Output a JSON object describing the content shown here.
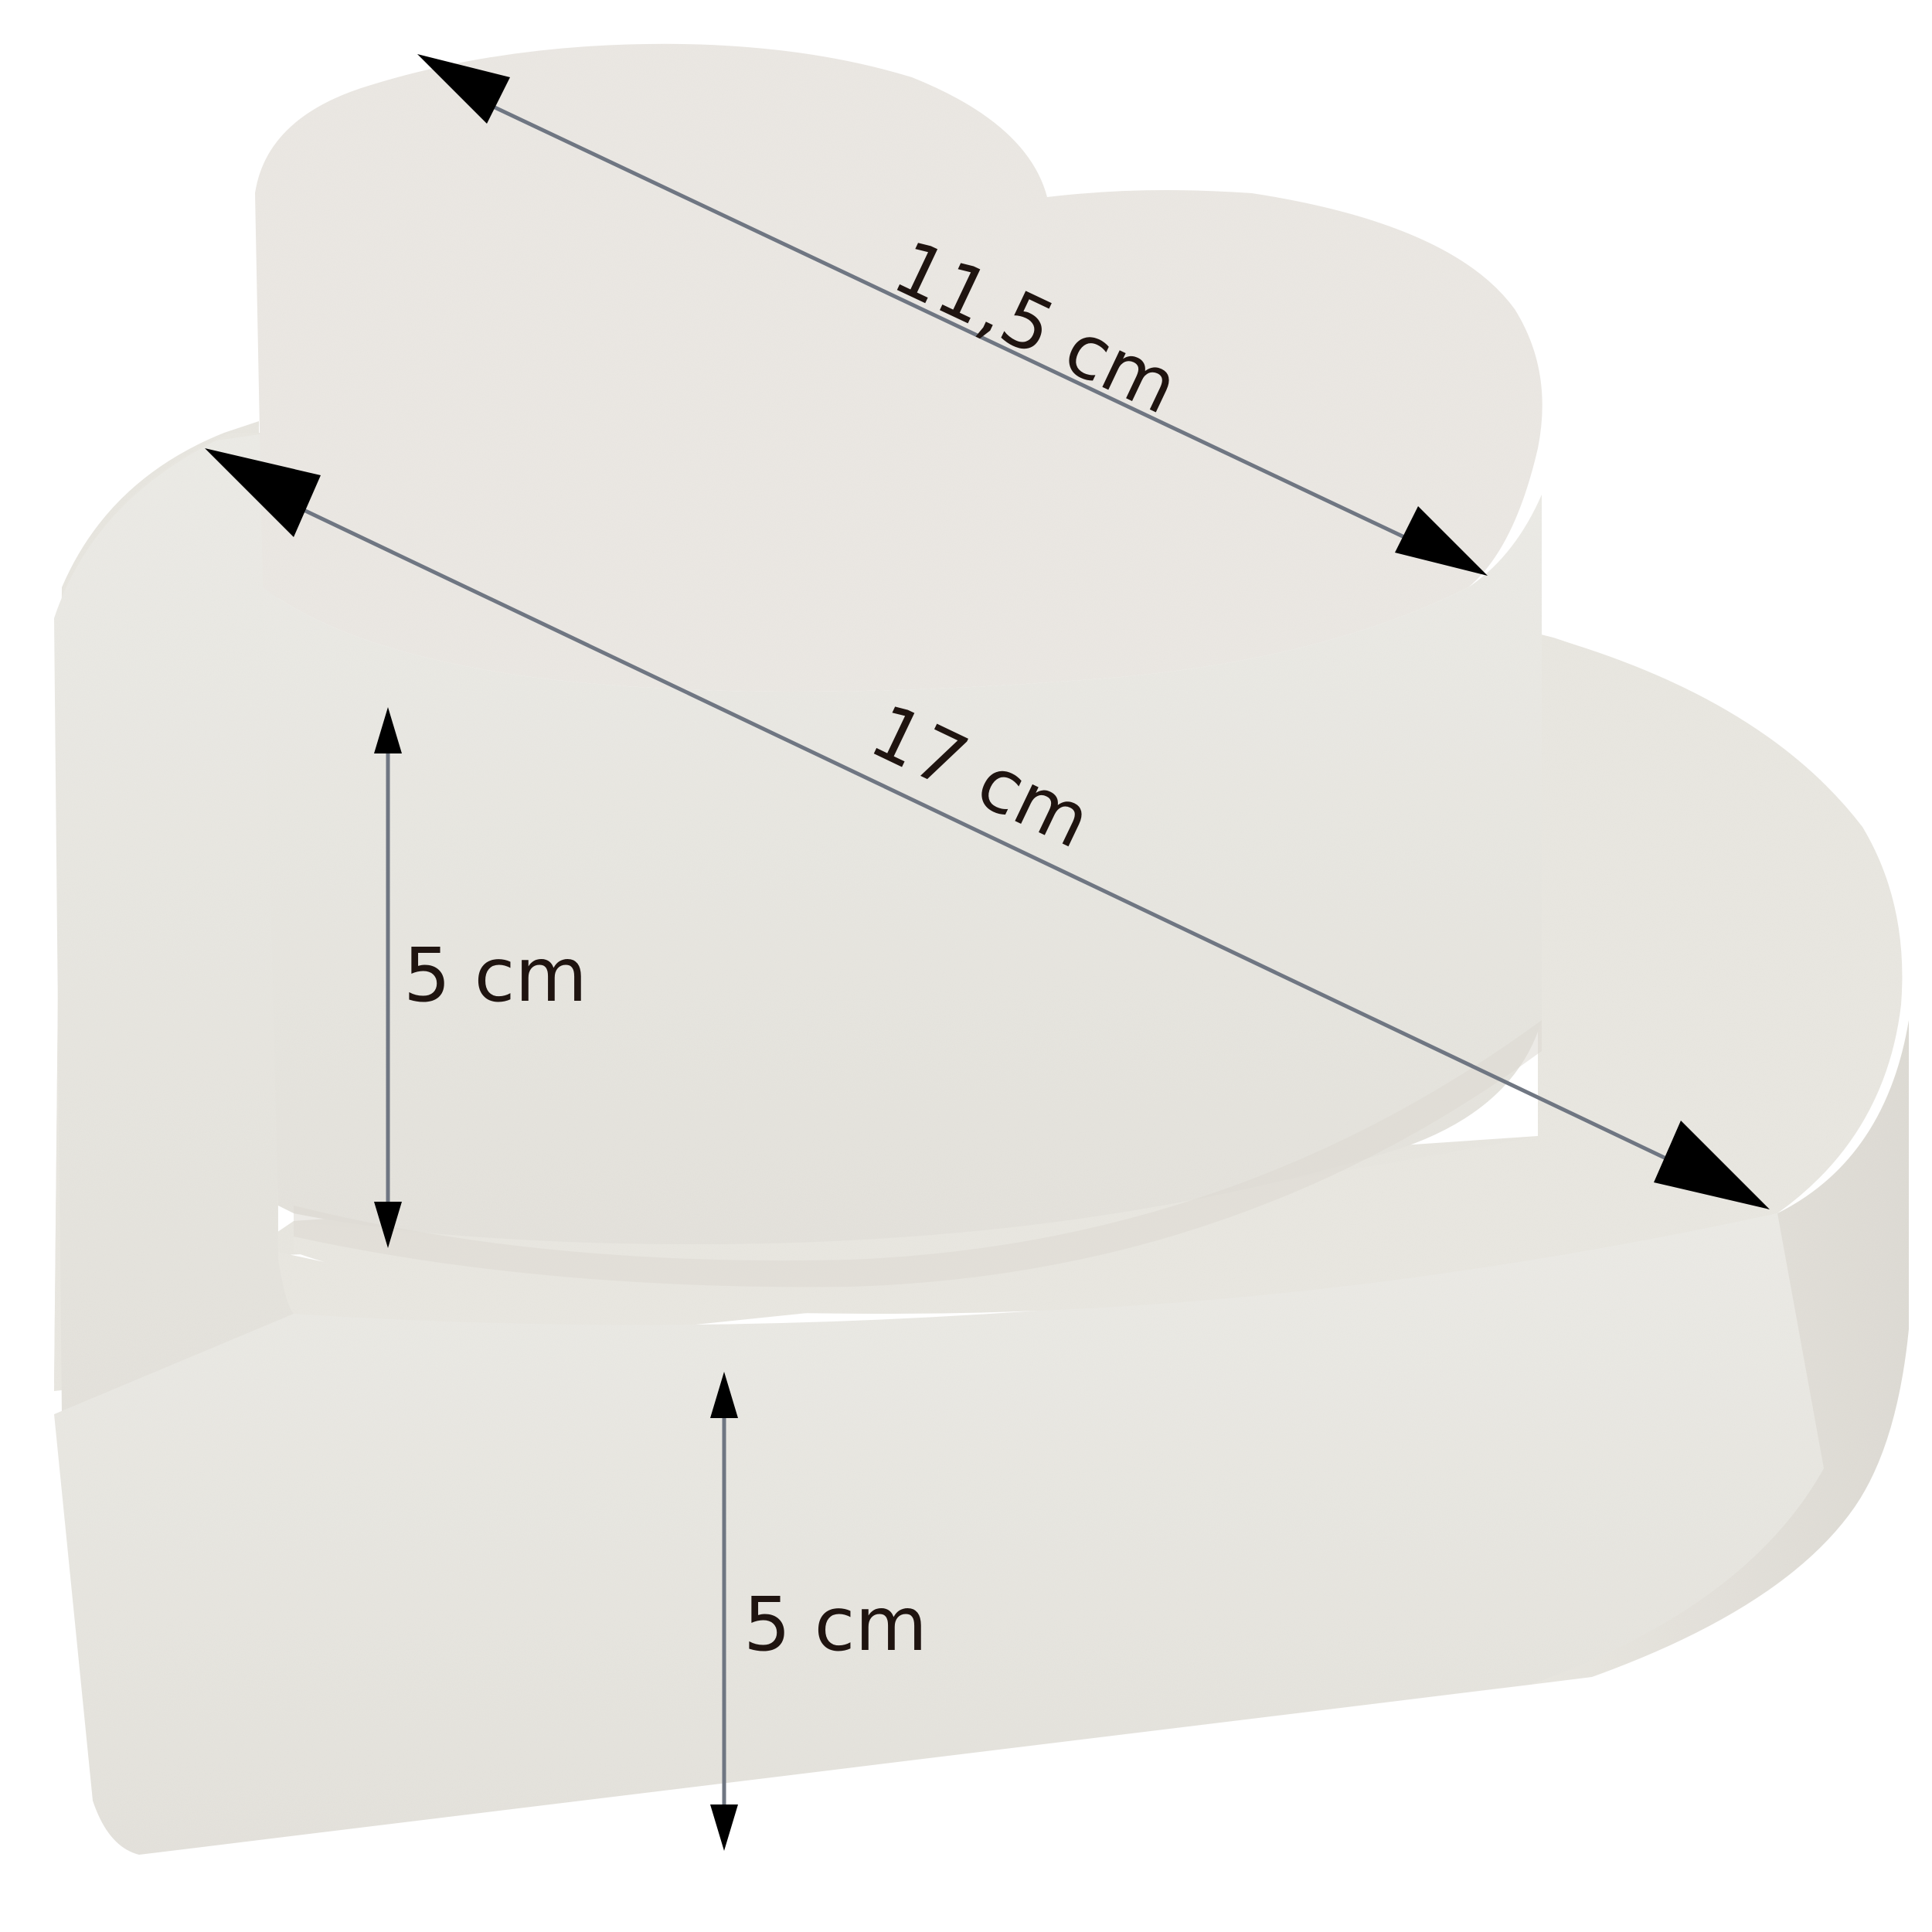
{
  "product": {
    "name": "",
    "shape": "two-tier heart foam dummy",
    "colors": {
      "foam_top": "#ebe8e3",
      "foam_side": "#e9e7e1",
      "foam_shadow": "#dcd9d2",
      "dimension_line": "#6f7682",
      "arrow_head": "#000000",
      "label_text": "#1f1410"
    }
  },
  "dimensions": {
    "top_diameter": "11,5 cm",
    "bottom_diameter": "17 cm",
    "top_height": "5 cm",
    "bottom_height": "5 cm"
  }
}
